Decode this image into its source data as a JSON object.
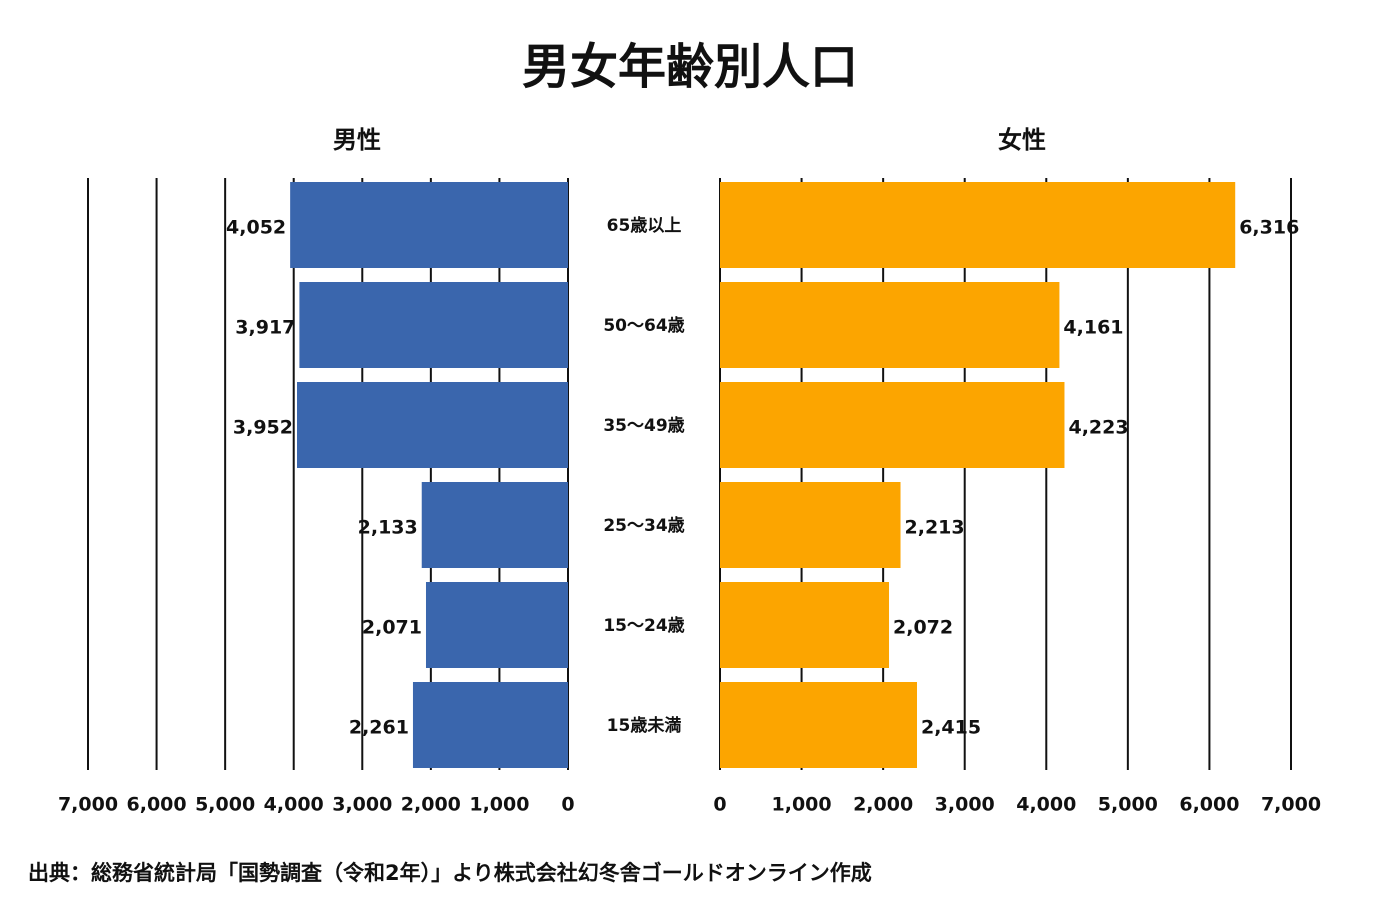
{
  "chart_data": {
    "type": "pyramid",
    "title": "男女年齢別人口",
    "categories": [
      "65歳以上",
      "50〜64歳",
      "35〜49歳",
      "25〜34歳",
      "15〜24歳",
      "15歳未満"
    ],
    "series": [
      {
        "name": "男性",
        "color": "#3a66ad",
        "values": [
          4052,
          3917,
          3952,
          2133,
          2071,
          2261
        ],
        "value_labels": [
          "4,052",
          "3,917",
          "3,952",
          "2,133",
          "2,071",
          "2,261"
        ]
      },
      {
        "name": "女性",
        "color": "#fca500",
        "values": [
          6316,
          4161,
          4223,
          2213,
          2072,
          2415
        ],
        "value_labels": [
          "6,316",
          "4,161",
          "4,223",
          "2,213",
          "2,072",
          "2,415"
        ]
      }
    ],
    "xlim": [
      0,
      7000
    ],
    "xticks": [
      0,
      {
        "value": 1000,
        "label": "1,000"
      },
      {
        "value": 2000,
        "label": "2,000"
      },
      {
        "value": 3000,
        "label": "3,000"
      },
      {
        "value": 4000,
        "label": "4,000"
      },
      {
        "value": 5000,
        "label": "5,000"
      },
      {
        "value": 6000,
        "label": "6,000"
      },
      {
        "value": 7000,
        "label": "7,000"
      }
    ],
    "grid": true,
    "source": "出典：総務省統計局「国勢調査（令和2年）」より株式会社幻冬舎ゴールドオンライン作成"
  }
}
